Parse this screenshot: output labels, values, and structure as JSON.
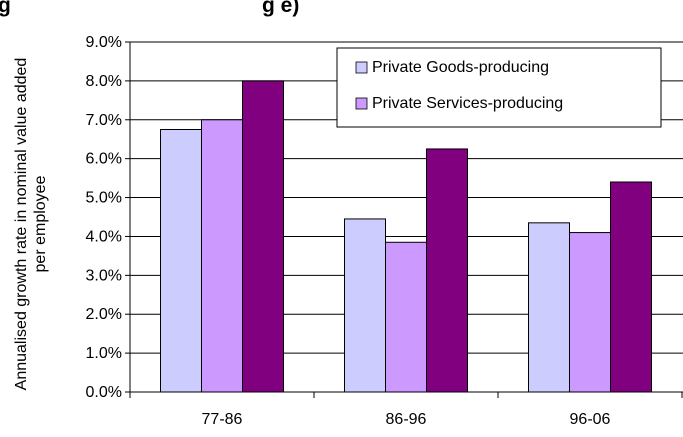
{
  "chart_data": {
    "type": "bar",
    "title": "",
    "title_fragment": "g",
    "title_fragment_right": "g e)",
    "xlabel": "",
    "ylabel": "Annualised growth rate in nominal value added per employee",
    "ylabel_lines": [
      "Annualised growth rate in nominal value added",
      "per employee"
    ],
    "categories": [
      "77-86",
      "86-96",
      "96-06"
    ],
    "ylim": [
      0,
      9
    ],
    "y_ticks": [
      0,
      1,
      2,
      3,
      4,
      5,
      6,
      7,
      8,
      9
    ],
    "y_tick_labels": [
      "0.0%",
      "1.0%",
      "2.0%",
      "3.0%",
      "4.0%",
      "5.0%",
      "6.0%",
      "7.0%",
      "8.0%",
      "9.0%"
    ],
    "grid": true,
    "legend_position": "top-right",
    "series": [
      {
        "name": "Private Goods-producing",
        "color": "#ccccff",
        "values": [
          6.75,
          4.45,
          4.35
        ]
      },
      {
        "name": "Private Services-producing",
        "color": "#cc99ff",
        "values": [
          7.0,
          3.85,
          4.1
        ]
      },
      {
        "color": "#800080",
        "values": [
          8.0,
          6.25,
          5.4
        ]
      }
    ]
  }
}
